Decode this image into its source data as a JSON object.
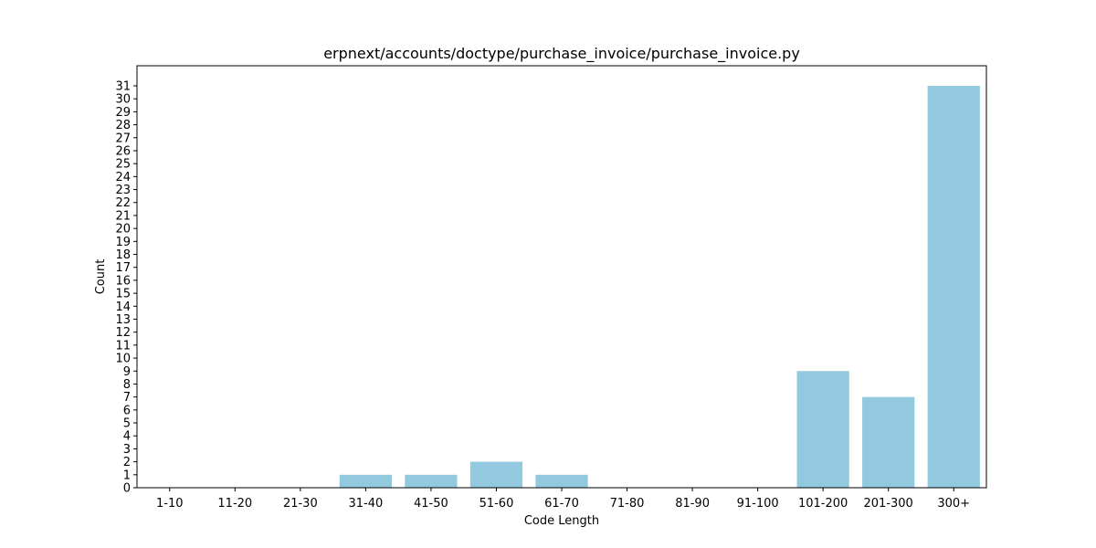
{
  "chart_data": {
    "type": "bar",
    "title": "erpnext/accounts/doctype/purchase_invoice/purchase_invoice.py",
    "xlabel": "Code Length",
    "ylabel": "Count",
    "categories": [
      "1-10",
      "11-20",
      "21-30",
      "31-40",
      "41-50",
      "51-60",
      "61-70",
      "71-80",
      "81-90",
      "91-100",
      "101-200",
      "201-300",
      "300+"
    ],
    "values": [
      0,
      0,
      0,
      1,
      1,
      2,
      1,
      0,
      0,
      0,
      9,
      7,
      31
    ],
    "ylim": [
      0,
      32.55
    ],
    "yticks": [
      0,
      1,
      2,
      3,
      4,
      5,
      6,
      7,
      8,
      9,
      10,
      11,
      12,
      13,
      14,
      15,
      16,
      17,
      18,
      19,
      20,
      21,
      22,
      23,
      24,
      25,
      26,
      27,
      28,
      29,
      30,
      31
    ],
    "bar_color": "#92c9df",
    "grid": false,
    "legend": "none"
  }
}
